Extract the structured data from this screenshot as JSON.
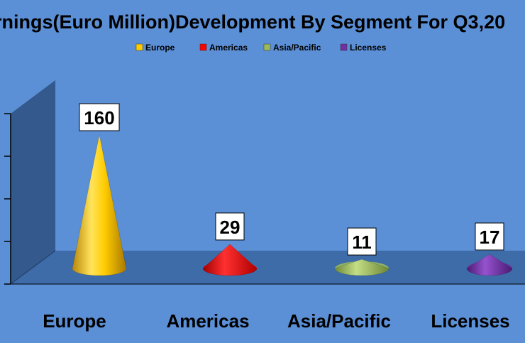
{
  "chart_data": {
    "type": "bar",
    "bar_shape": "cone",
    "title": "rnings(Euro Million)Development By Segment For Q3,20",
    "categories": [
      "Europe",
      "Americas",
      "Asia/Pacific",
      "Licenses"
    ],
    "values": [
      160,
      29,
      11,
      17
    ],
    "colors": [
      "#ffcc00",
      "#ff0000",
      "#9bbb59",
      "#7030a0"
    ],
    "legend": {
      "position": "top",
      "entries": [
        "Europe",
        "Americas",
        "Asia/Pacific",
        "Licenses"
      ]
    },
    "ylim": [
      0,
      200
    ],
    "grid": false,
    "background_color": "#5b8fd6",
    "floor_color": "#3e6ca8"
  }
}
